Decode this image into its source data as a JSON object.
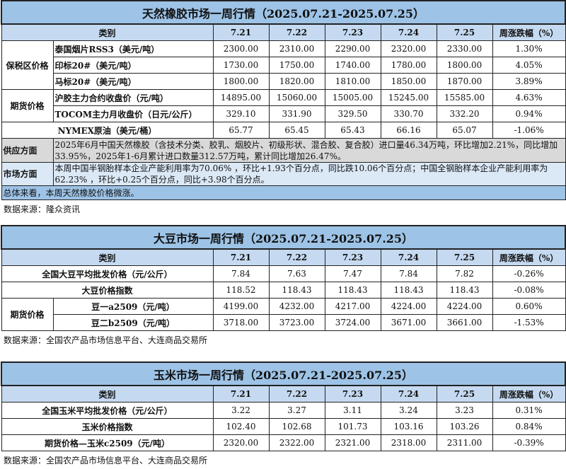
{
  "rubber": {
    "title": "天然橡胶市场一周行情（2025.07.21-2025.07.25）",
    "header": [
      "类别",
      "7.21",
      "7.22",
      "7.23",
      "7.24",
      "7.25",
      "周涨跌幅（%）"
    ],
    "group_bonded": "保税区价格",
    "group_futures": "期货价格",
    "rows": [
      {
        "name": "泰国烟片RSS3（美元/吨）",
        "values": [
          "2300.00",
          "2310.00",
          "2290.00",
          "2320.00",
          "2330.00",
          "1.30%"
        ]
      },
      {
        "name": "印标20#（美元/吨）",
        "values": [
          "1730.00",
          "1750.00",
          "1740.00",
          "1780.00",
          "1800.00",
          "4.05%"
        ]
      },
      {
        "name": "马标20#（美元/吨）",
        "values": [
          "1800.00",
          "1820.00",
          "1810.00",
          "1850.00",
          "1870.00",
          "3.89%"
        ]
      },
      {
        "name": "沪胶主力合约收盘价（元/吨）",
        "values": [
          "14895.00",
          "15060.00",
          "15005.00",
          "15245.00",
          "15585.00",
          "4.63%"
        ]
      },
      {
        "name": "TOCOM主力月收盘价（日元/公斤）",
        "values": [
          "329.10",
          "331.90",
          "329.50",
          "330.70",
          "332.20",
          "0.94%"
        ]
      },
      {
        "name": "NYMEX原油（美元/桶）",
        "values": [
          "65.77",
          "65.45",
          "65.43",
          "66.16",
          "65.07",
          "-1.06%"
        ]
      }
    ],
    "supply_label": "供应方面",
    "supply_text": "2025年6月中国天然橡胶（含技术分类、胶乳、烟胶片、初级形状、混合胶、复合胶）进口量46.34万吨，环比增加2.21%，同比增加33.95%，2025年1-6月累计进口数量312.57万吨，累计同比增加26.47%。",
    "market_label": "市场方面",
    "market_text": "本周中国半钢胎样本企业产能利用率为70.06% ，环比+1.93个百分点，同比跌10.06个百分点；中国全钢胎样本企业产能利用率为62.23% ，环比+0.25个百分点，同比+3.98个百分点。",
    "summary": "总体来看，本周天然橡胶价格微涨。",
    "source": "数据来源：隆众资讯"
  },
  "soy": {
    "title": "大豆市场一周行情（2025.07.21-2025.07.25）",
    "header": [
      "类别",
      "7.21",
      "7.22",
      "7.23",
      "7.24",
      "7.25",
      "周涨跌幅（%）"
    ],
    "group_futures": "期货价格",
    "rows": [
      {
        "name": "全国大豆平均批发价格（元/公斤）",
        "values": [
          "7.84",
          "7.63",
          "7.47",
          "7.84",
          "7.82",
          "-0.26%"
        ]
      },
      {
        "name": "大豆价格指数",
        "values": [
          "118.52",
          "118.43",
          "118.43",
          "118.43",
          "118.43",
          "-0.08%"
        ]
      },
      {
        "name": "豆一a2509（元/吨）",
        "values": [
          "4199.00",
          "4232.00",
          "4217.00",
          "4224.00",
          "4224.00",
          "0.60%"
        ]
      },
      {
        "name": "豆二b2509（元/吨）",
        "values": [
          "3718.00",
          "3723.00",
          "3724.00",
          "3671.00",
          "3661.00",
          "-1.53%"
        ]
      }
    ],
    "source": "数据来源：全国农产品市场信息平台、大连商品交易所"
  },
  "corn": {
    "title": "玉米市场一周行情（2025.07.21-2025.07.25）",
    "header": [
      "类别",
      "7.21",
      "7.22",
      "7.23",
      "7.24",
      "7.25",
      "周涨跌幅（%）"
    ],
    "rows": [
      {
        "name": "全国玉米平均批发价格（元/公斤）",
        "values": [
          "3.22",
          "3.27",
          "3.11",
          "3.24",
          "3.23",
          "0.31%"
        ]
      },
      {
        "name": "玉米价格指数",
        "values": [
          "102.40",
          "102.68",
          "101.73",
          "103.16",
          "103.26",
          "0.84%"
        ]
      },
      {
        "name": "期货价格—玉米c2509（元/吨）",
        "values": [
          "2320.00",
          "2322.00",
          "2321.00",
          "2318.00",
          "2311.00",
          "-0.39%"
        ]
      }
    ],
    "source": "数据来源：全国农产品市场信息平台、大连商品交易所"
  },
  "colors": {
    "title_bg": "#9dc3e6",
    "header_bg": "#c5daf1",
    "supply_bg": "#d9d9d9",
    "market_bg": "#dbe8f6"
  }
}
